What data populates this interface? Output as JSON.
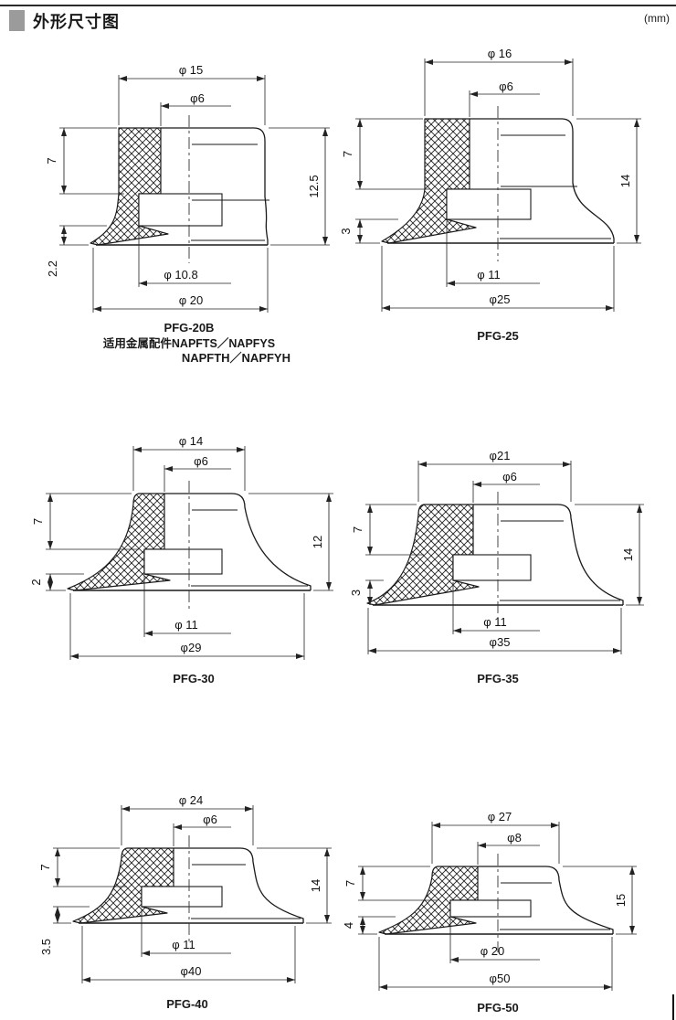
{
  "header": {
    "title": "外形尺寸图",
    "unit": "(mm)"
  },
  "colors": {
    "line": "#1a1a1a",
    "section_marker_gray": "#9b9b9b"
  },
  "diagrams": [
    {
      "caption": [
        "PFG-20B",
        "适用金属配件NAPFTS／NAPFYS",
        "NAPFTH／NAPFYH"
      ],
      "dims": {
        "top": "φ 15",
        "neck": "φ6",
        "upper_left": "7",
        "lower_left": "2.2",
        "height": "12.5",
        "inner": "φ 10.8",
        "outer": "φ 20"
      }
    },
    {
      "caption": [
        "PFG-25"
      ],
      "dims": {
        "top": "φ 16",
        "neck": "φ6",
        "upper_left": "7",
        "lower_left": "3",
        "height": "14",
        "inner": "φ 11",
        "outer": "φ25"
      }
    },
    {
      "caption": [
        "PFG-30"
      ],
      "dims": {
        "top": "φ 14",
        "neck": "φ6",
        "upper_left": "7",
        "lower_left": "2",
        "height": "12",
        "inner": "φ 11",
        "outer": "φ29"
      }
    },
    {
      "caption": [
        "PFG-35"
      ],
      "dims": {
        "top": "φ21",
        "neck": "φ6",
        "upper_left": "7",
        "lower_left": "3",
        "height": "14",
        "inner": "φ 11",
        "outer": "φ35"
      }
    },
    {
      "caption": [
        "PFG-40"
      ],
      "dims": {
        "top": "φ 24",
        "neck": "φ6",
        "upper_left": "7",
        "lower_left": "3.5",
        "height": "14",
        "inner": "φ 11",
        "outer": "φ40"
      }
    },
    {
      "caption": [
        "PFG-50"
      ],
      "dims": {
        "top": "φ 27",
        "neck": "φ8",
        "upper_left": "7",
        "lower_left": "4",
        "height": "15",
        "inner": "φ 20",
        "outer": "φ50"
      }
    }
  ]
}
